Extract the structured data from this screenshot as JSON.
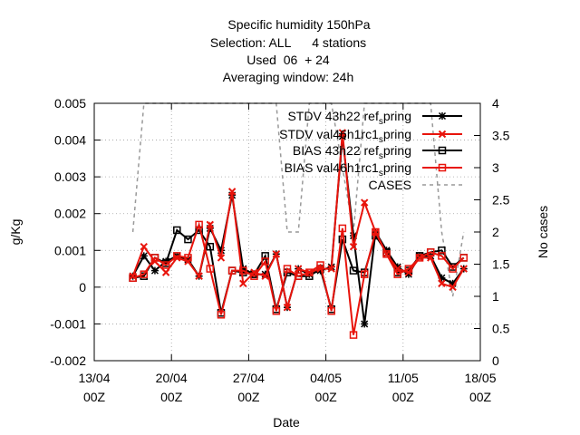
{
  "chart_data": {
    "type": "line",
    "title_lines": [
      "Specific humidity 150hPa",
      "Selection: ALL      4 stations",
      "Used  06  + 24",
      "Averaging window: 24h"
    ],
    "xlabel": "Date",
    "ylabel": "g/Kg",
    "y2label": "No cases",
    "ylim": [
      -0.002,
      0.005
    ],
    "y2lim": [
      0,
      4
    ],
    "xlim": [
      0,
      35
    ],
    "x_ticks": [
      {
        "x": 0,
        "line1": "13/04",
        "line2": "00Z"
      },
      {
        "x": 7,
        "line1": "20/04",
        "line2": "00Z"
      },
      {
        "x": 14,
        "line1": "27/04",
        "line2": "00Z"
      },
      {
        "x": 21,
        "line1": "04/05",
        "line2": "00Z"
      },
      {
        "x": 28,
        "line1": "11/05",
        "line2": "00Z"
      },
      {
        "x": 35,
        "line1": "18/05",
        "line2": "00Z"
      }
    ],
    "y_ticks": [
      "0.005",
      "0.004",
      "0.003",
      "0.002",
      "0.001",
      "0",
      "-0.001",
      "-0.002"
    ],
    "y_tick_values": [
      0.005,
      0.004,
      0.003,
      0.002,
      0.001,
      0,
      -0.001,
      -0.002
    ],
    "y2_ticks": [
      "4",
      "3.5",
      "3",
      "2.5",
      "2",
      "1.5",
      "1",
      "0.5",
      "0"
    ],
    "y2_tick_values": [
      4,
      3.5,
      3,
      2.5,
      2,
      1.5,
      1,
      0.5,
      0
    ],
    "x": [
      3.5,
      4.5,
      5.5,
      6.5,
      7.5,
      8.5,
      9.5,
      10.5,
      11.5,
      12.5,
      13.5,
      14.5,
      15.5,
      16.5,
      17.5,
      18.5,
      19.5,
      20.5,
      21.5,
      22.5,
      23.5,
      24.5,
      25.5,
      26.5,
      27.5,
      28.5,
      29.5,
      30.5,
      31.5,
      32.5,
      33.5
    ],
    "series": [
      {
        "name": "STDV 43h22 ref_spring",
        "axis": "y",
        "color": "#000000",
        "marker": "star",
        "values": [
          0.0003,
          0.00085,
          0.00045,
          0.0007,
          0.00085,
          0.00075,
          0.0003,
          0.0016,
          0.001,
          0.0025,
          0.0005,
          0.00035,
          0.00035,
          0.0009,
          -0.00055,
          0.0005,
          0.00035,
          0.00045,
          0.00055,
          0.0041,
          0.0014,
          -0.001,
          0.0015,
          0.001,
          0.00055,
          0.00035,
          0.00085,
          0.00085,
          0.00025,
          0.0001,
          0.0005
        ]
      },
      {
        "name": "STDV val46h1rc1_spring",
        "axis": "y",
        "color": "#e8140c",
        "marker": "x",
        "values": [
          0.0003,
          0.0011,
          0.0007,
          0.0004,
          0.0008,
          0.0007,
          0.0003,
          0.0017,
          0.0008,
          0.0026,
          0.0001,
          0.0004,
          0.0003,
          0.0009,
          -0.00055,
          0.0005,
          0.0004,
          0.0005,
          0.0005,
          0.0042,
          0.0011,
          0.0023,
          0.0015,
          0.0009,
          0.0005,
          0.0004,
          0.0008,
          0.0008,
          0.0001,
          0.0,
          0.0005
        ]
      },
      {
        "name": "BIAS 43h22 ref_spring",
        "axis": "y",
        "color": "#000000",
        "marker": "square",
        "values": [
          0.00025,
          0.0003,
          0.0008,
          0.00065,
          0.00155,
          0.0013,
          0.00155,
          0.0011,
          -0.0007,
          0.00045,
          0.0004,
          0.00035,
          0.00085,
          -0.0006,
          0.0004,
          0.0003,
          0.0003,
          0.0005,
          -0.0006,
          0.0013,
          0.00045,
          0.0004,
          0.0014,
          0.00095,
          0.0004,
          0.00045,
          0.00085,
          0.00095,
          0.001,
          0.00055,
          0.0008
        ]
      },
      {
        "name": "BIAS val46h1rc1_spring",
        "axis": "y",
        "color": "#e8140c",
        "marker": "square",
        "values": [
          0.00025,
          0.00035,
          0.0008,
          0.0006,
          0.00085,
          0.0008,
          0.0017,
          0.0005,
          -0.00075,
          0.00045,
          0.00045,
          0.0003,
          0.0007,
          -0.00065,
          0.0005,
          0.0003,
          0.0004,
          0.0006,
          -0.00065,
          0.0016,
          -0.0013,
          0.00035,
          0.0015,
          0.0009,
          0.00035,
          0.0005,
          0.0008,
          0.00095,
          0.00085,
          0.0005,
          0.0008
        ]
      },
      {
        "name": "CASES",
        "axis": "y2",
        "color": "#999999",
        "marker": "none",
        "dashed": true,
        "values": [
          2.0,
          4.0,
          4.0,
          4.0,
          4.0,
          4.0,
          4.0,
          4.0,
          4.0,
          4.0,
          4.0,
          4.0,
          4.0,
          4.0,
          2.0,
          2.0,
          4.0,
          4.0,
          4.0,
          3.0,
          2.0,
          4.0,
          4.0,
          4.0,
          4.0,
          4.0,
          4.0,
          4.0,
          2.0,
          1.0,
          2.0
        ]
      }
    ],
    "legend_position": "top-right",
    "grid": true
  }
}
